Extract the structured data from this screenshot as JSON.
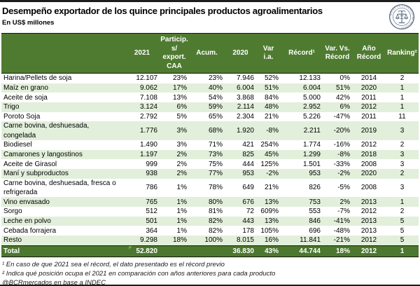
{
  "header": {
    "title": "Desempeño exportador de los quince principales productos agroalimentarios",
    "subtitle": "En US$ millones",
    "logo_name": "bolsa-de-comercio-de-rosario-seal",
    "logo_color": "#5d6e83"
  },
  "colors": {
    "header_green": "#4F7B31",
    "total_green": "#4C772E",
    "stripe_green": "#E2EFDA",
    "comment_flag_green": "#70AD47"
  },
  "table": {
    "columns": [
      "",
      "2021",
      "Particip. s/\nexport.\nCAA",
      "Acum.",
      "2020",
      "Var\ni.a.",
      "Récord¹",
      "Var. Vs.\nRécord",
      "Año Récord",
      "Ranking²"
    ],
    "rows": [
      [
        "Harina/Pellets de soja",
        "12.107",
        "23%",
        "23%",
        "7.946",
        "52%",
        "12.133",
        "0%",
        "2014",
        "2"
      ],
      [
        "Maíz en grano",
        "9.062",
        "17%",
        "40%",
        "6.004",
        "51%",
        "6.004",
        "51%",
        "2020",
        "1"
      ],
      [
        "Aceite de soja",
        "7.108",
        "13%",
        "54%",
        "3.868",
        "84%",
        "5.000",
        "42%",
        "2011",
        "1"
      ],
      [
        "Trigo",
        "3.124",
        "6%",
        "59%",
        "2.114",
        "48%",
        "2.952",
        "6%",
        "2012",
        "1"
      ],
      [
        "Poroto Soja",
        "2.792",
        "5%",
        "65%",
        "2.304",
        "21%",
        "5.226",
        "-47%",
        "2011",
        "11"
      ],
      [
        "Carne bovina, deshuesada, congelada",
        "1.776",
        "3%",
        "68%",
        "1.920",
        "-8%",
        "2.211",
        "-20%",
        "2019",
        "3"
      ],
      [
        "Biodiesel",
        "1.490",
        "3%",
        "71%",
        "421",
        "254%",
        "1.774",
        "-16%",
        "2012",
        "2"
      ],
      [
        "Camarones y langostinos",
        "1.197",
        "2%",
        "73%",
        "825",
        "45%",
        "1.299",
        "-8%",
        "2018",
        "3"
      ],
      [
        "Aceite de Girasol",
        "999",
        "2%",
        "75%",
        "444",
        "125%",
        "1.501",
        "-33%",
        "2008",
        "3"
      ],
      [
        "Maní y subproductos",
        "938",
        "2%",
        "77%",
        "953",
        "-2%",
        "953",
        "-2%",
        "2020",
        "2"
      ],
      [
        "Carne bovina, deshuesada, fresca o refrigerada",
        "786",
        "1%",
        "78%",
        "649",
        "21%",
        "826",
        "-5%",
        "2008",
        "3"
      ],
      [
        "Vino envasado",
        "765",
        "1%",
        "80%",
        "676",
        "13%",
        "753",
        "2%",
        "2013",
        "1"
      ],
      [
        "Sorgo",
        "512",
        "1%",
        "81%",
        "72",
        "609%",
        "553",
        "-7%",
        "2012",
        "2"
      ],
      [
        "Leche en polvo",
        "501",
        "1%",
        "82%",
        "443",
        "13%",
        "846",
        "-41%",
        "2013",
        "5"
      ],
      [
        "Cebada forrajera",
        "364",
        "1%",
        "82%",
        "178",
        "105%",
        "696",
        "-48%",
        "2013",
        "5"
      ],
      [
        "Resto",
        "9.298",
        "18%",
        "100%",
        "8.015",
        "16%",
        "11.841",
        "-21%",
        "2012",
        "5"
      ]
    ],
    "total": [
      "Total",
      "52.820",
      "",
      "",
      "36.830",
      "43%",
      "44.744",
      "18%",
      "2012",
      "1"
    ]
  },
  "footnotes": [
    "¹ En caso de que 2021 sea el récord, el dato presentado es el récord previo",
    "² Indica qué posición ocupa el 2021 en comparación con años anteriores para cada producto",
    "@BCRmercados en base a INDEC"
  ]
}
